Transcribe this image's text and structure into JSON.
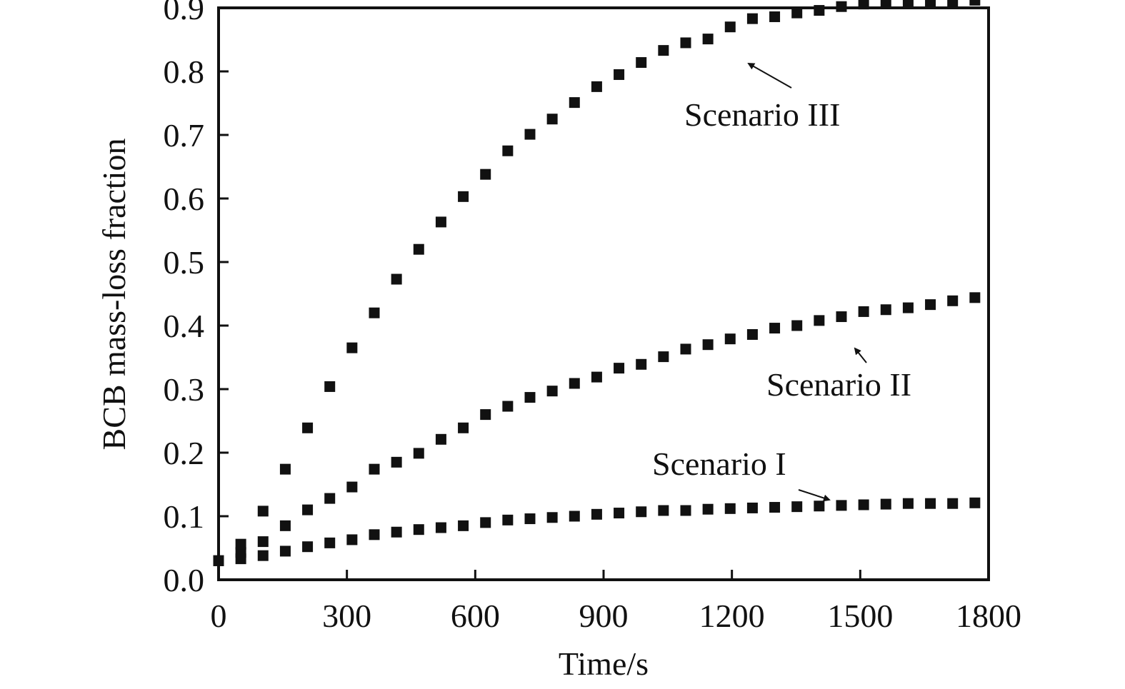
{
  "chart_data": {
    "type": "scatter",
    "title": "",
    "xlabel": "Time/s",
    "ylabel": "BCB mass-loss fraction",
    "xlim": [
      0,
      1800
    ],
    "ylim": [
      0.0,
      0.9
    ],
    "x_ticks": [
      "0",
      "300",
      "600",
      "900",
      "1200",
      "1500",
      "1800"
    ],
    "y_ticks": [
      "0.0",
      "0.1",
      "0.2",
      "0.3",
      "0.4",
      "0.5",
      "0.6",
      "0.7",
      "0.8",
      "0.9"
    ],
    "grid": false,
    "legend": "none",
    "marker": "square",
    "marker_color": "#111111",
    "series": [
      {
        "name": "Scenario I",
        "x": [
          0,
          52,
          104,
          156,
          208,
          260,
          312,
          364,
          416,
          468,
          520,
          572,
          624,
          676,
          728,
          780,
          832,
          884,
          936,
          988,
          1040,
          1092,
          1144,
          1196,
          1248,
          1300,
          1352,
          1404,
          1456,
          1508,
          1560,
          1612,
          1664,
          1716,
          1768
        ],
        "y": [
          0.03,
          0.033,
          0.038,
          0.045,
          0.052,
          0.058,
          0.063,
          0.071,
          0.075,
          0.079,
          0.082,
          0.085,
          0.09,
          0.094,
          0.096,
          0.098,
          0.1,
          0.103,
          0.105,
          0.107,
          0.109,
          0.109,
          0.111,
          0.112,
          0.113,
          0.114,
          0.115,
          0.116,
          0.117,
          0.118,
          0.119,
          0.12,
          0.12,
          0.12,
          0.121
        ]
      },
      {
        "name": "Scenario II",
        "x": [
          0,
          52,
          104,
          156,
          208,
          260,
          312,
          364,
          416,
          468,
          520,
          572,
          624,
          676,
          728,
          780,
          832,
          884,
          936,
          988,
          1040,
          1092,
          1144,
          1196,
          1248,
          1300,
          1352,
          1404,
          1456,
          1508,
          1560,
          1612,
          1664,
          1716,
          1768
        ],
        "y": [
          0.03,
          0.043,
          0.06,
          0.085,
          0.11,
          0.128,
          0.146,
          0.174,
          0.185,
          0.199,
          0.221,
          0.239,
          0.26,
          0.273,
          0.287,
          0.297,
          0.309,
          0.319,
          0.333,
          0.339,
          0.351,
          0.363,
          0.37,
          0.379,
          0.386,
          0.396,
          0.4,
          0.408,
          0.414,
          0.422,
          0.425,
          0.428,
          0.433,
          0.439,
          0.444
        ]
      },
      {
        "name": "Scenario III",
        "x": [
          0,
          52,
          104,
          156,
          208,
          260,
          312,
          364,
          416,
          468,
          520,
          572,
          624,
          676,
          728,
          780,
          832,
          884,
          936,
          988,
          1040,
          1092,
          1144,
          1196,
          1248,
          1300,
          1352,
          1404,
          1456,
          1508,
          1560,
          1612,
          1664,
          1716,
          1768
        ],
        "y": [
          0.03,
          0.056,
          0.108,
          0.174,
          0.239,
          0.304,
          0.365,
          0.42,
          0.473,
          0.52,
          0.563,
          0.603,
          0.638,
          0.675,
          0.701,
          0.725,
          0.751,
          0.776,
          0.795,
          0.814,
          0.833,
          0.845,
          0.851,
          0.87,
          0.883,
          0.886,
          0.892,
          0.896,
          0.902,
          0.906,
          0.907,
          0.907,
          0.908,
          0.91,
          0.912
        ]
      }
    ],
    "annotations": [
      {
        "text": "Scenario III",
        "series": "Scenario III",
        "arrow_target_x": 1240,
        "arrow_target_y": 0.87
      },
      {
        "text": "Scenario II",
        "series": "Scenario II",
        "arrow_target_x": 1455,
        "arrow_target_y": 0.41
      },
      {
        "text": "Scenario I",
        "series": "Scenario I",
        "arrow_target_x": 1425,
        "arrow_target_y": 0.12
      }
    ]
  }
}
